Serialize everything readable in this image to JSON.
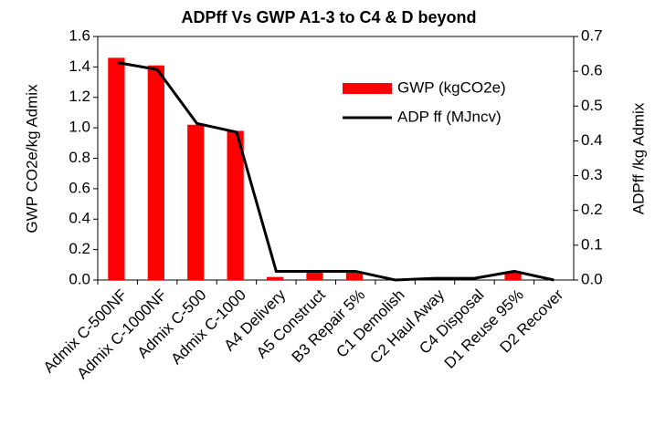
{
  "chart_data": {
    "type": "bar",
    "title": "ADPff Vs GWP A1-3 to C4 & D beyond",
    "ylabel": "GWP CO2e/kg Admix",
    "y2label": "ADPff /kg Admix",
    "categories": [
      "Admix C-500NF",
      "Admix C-1000NF",
      "Admix C-500",
      "Admix C-1000",
      "A4 Delivery",
      "A5 Construct",
      "B3 Repair 5%",
      "C1 Demolish",
      "C2 Haul Away",
      "C4 Disposal",
      "D1 Reuse 95%",
      "D2 Recover"
    ],
    "series": [
      {
        "name": "GWP (kgCO2e)",
        "type": "bar",
        "color": "#ff0000",
        "values": [
          1.46,
          1.41,
          1.02,
          0.98,
          0.02,
          0.05,
          0.05,
          0.0,
          0.0,
          0.0,
          0.05,
          0.0
        ]
      },
      {
        "name": "ADP ff (MJncv)",
        "type": "line",
        "axis": "y2",
        "color": "#000000",
        "values": [
          0.625,
          0.605,
          0.45,
          0.425,
          0.025,
          0.025,
          0.025,
          0.0,
          0.005,
          0.005,
          0.025,
          0.0
        ]
      }
    ],
    "ylim": [
      0,
      1.6
    ],
    "yticks": [
      {
        "value": 0,
        "label": "0.0"
      },
      0.2,
      0.4,
      0.6,
      0.8,
      {
        "value": 1,
        "label": "1.0"
      },
      1.2,
      1.4,
      1.6
    ],
    "y2lim": [
      0,
      0.7
    ],
    "y2ticks": [
      {
        "value": 0,
        "label": "0.0"
      },
      0.1,
      0.2,
      0.3,
      0.4,
      0.5,
      0.6,
      0.7
    ],
    "legend": "upper right"
  }
}
